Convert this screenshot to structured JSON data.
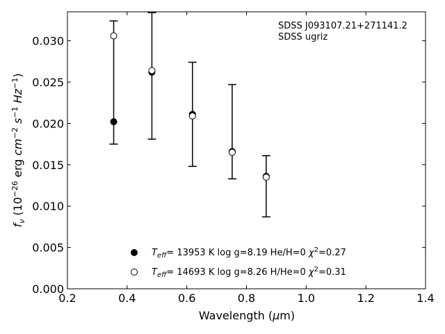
{
  "chart_data": {
    "type": "scatter",
    "title": "",
    "xlabel": "Wavelength (μm)",
    "ylabel": "fν (10⁻²⁶ erg cm⁻² s⁻¹ Hz⁻¹)",
    "xlim": [
      0.2,
      1.4
    ],
    "ylim": [
      0.0,
      0.0335
    ],
    "x_ticks": [
      "0.2",
      "0.4",
      "0.6",
      "0.8",
      "1.0",
      "1.2",
      "1.4"
    ],
    "y_ticks": [
      "0.000",
      "0.005",
      "0.010",
      "0.015",
      "0.020",
      "0.025",
      "0.030"
    ],
    "annotations": [
      "SDSS J093107.21+271141.2",
      "SDSS ugriz"
    ],
    "observed_errorbars": [
      {
        "x": 0.355,
        "low": 0.0175,
        "high": 0.0324
      },
      {
        "x": 0.483,
        "low": 0.0181,
        "high": 0.0334
      },
      {
        "x": 0.619,
        "low": 0.0148,
        "high": 0.0274
      },
      {
        "x": 0.752,
        "low": 0.0133,
        "high": 0.0247
      },
      {
        "x": 0.866,
        "low": 0.0087,
        "high": 0.0161
      }
    ],
    "series": [
      {
        "name": "T_eff= 13953 K  log g=8.19  He/H=0  χ²=0.27",
        "marker": "filled",
        "x": [
          0.355,
          0.483,
          0.619,
          0.752,
          0.866
        ],
        "y": [
          0.0202,
          0.0262,
          0.0211,
          0.0166,
          0.0136
        ]
      },
      {
        "name": "T_eff= 14693 K  log g=8.26  H/He=0  χ²=0.31",
        "marker": "open",
        "x": [
          0.355,
          0.483,
          0.619,
          0.752,
          0.866
        ],
        "y": [
          0.0306,
          0.0264,
          0.0209,
          0.0165,
          0.0135
        ]
      }
    ],
    "legend": {
      "placement": "lower-center",
      "entries": [
        {
          "teff": "= 13953 K  log g=8.19  He/H=0  ",
          "chi": "=0.27"
        },
        {
          "teff": "= 14693 K  log g=8.26  H/He=0  ",
          "chi": "=0.31"
        }
      ]
    },
    "grid": false
  }
}
